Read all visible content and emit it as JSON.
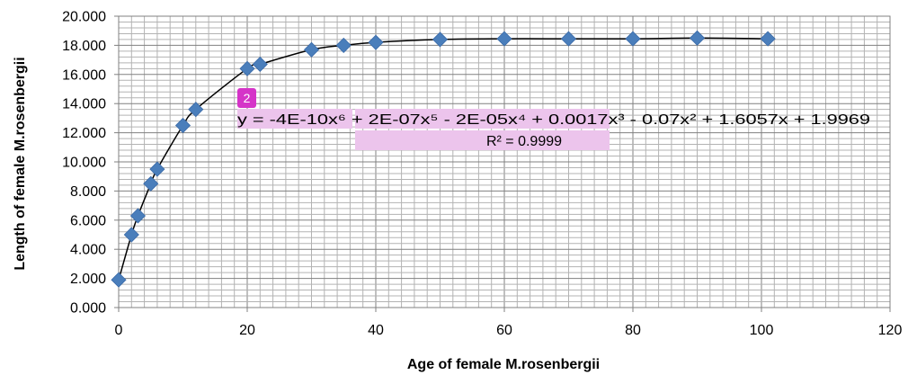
{
  "chart_data": {
    "type": "scatter",
    "title": "",
    "xlabel": "Age of female M.rosenbergii",
    "ylabel": "Length of  female M.rosenbergii",
    "xlim": [
      0,
      120
    ],
    "ylim": [
      0,
      20
    ],
    "x_ticks": [
      0,
      20,
      40,
      60,
      80,
      100,
      120
    ],
    "x_tick_labels": [
      "0",
      "20",
      "40",
      "60",
      "80",
      "100",
      "120"
    ],
    "y_ticks": [
      0,
      2,
      4,
      6,
      8,
      10,
      12,
      14,
      16,
      18,
      20
    ],
    "y_tick_labels": [
      "0.000",
      "2.000",
      "4.000",
      "6.000",
      "8.000",
      "10.000",
      "12.000",
      "14.000",
      "16.000",
      "18.000",
      "20.000"
    ],
    "grid": true,
    "legend": "none",
    "series": [
      {
        "marker": "diamond",
        "color": "#4a7ebb",
        "points": [
          {
            "x": 0,
            "y": 1.9
          },
          {
            "x": 2,
            "y": 5.0
          },
          {
            "x": 3,
            "y": 6.3
          },
          {
            "x": 5,
            "y": 8.5
          },
          {
            "x": 6,
            "y": 9.5
          },
          {
            "x": 10,
            "y": 12.5
          },
          {
            "x": 12,
            "y": 13.6
          },
          {
            "x": 20,
            "y": 16.4
          },
          {
            "x": 22,
            "y": 16.7
          },
          {
            "x": 30,
            "y": 17.7
          },
          {
            "x": 35,
            "y": 18.0
          },
          {
            "x": 40,
            "y": 18.2
          },
          {
            "x": 50,
            "y": 18.4
          },
          {
            "x": 60,
            "y": 18.45
          },
          {
            "x": 70,
            "y": 18.45
          },
          {
            "x": 80,
            "y": 18.45
          },
          {
            "x": 90,
            "y": 18.5
          },
          {
            "x": 101,
            "y": 18.45
          }
        ]
      }
    ],
    "trendline": {
      "type": "polynomial",
      "order": 6,
      "color": "#000000",
      "equation": "y = -4E-10x⁶ + 2E-07x⁵ - 2E-05x⁴ + 0.0017x³ - 0.07x² + 1.6057x + 1.9969",
      "r_squared": "R² = 0.9999"
    },
    "annotation_badge": "2"
  }
}
